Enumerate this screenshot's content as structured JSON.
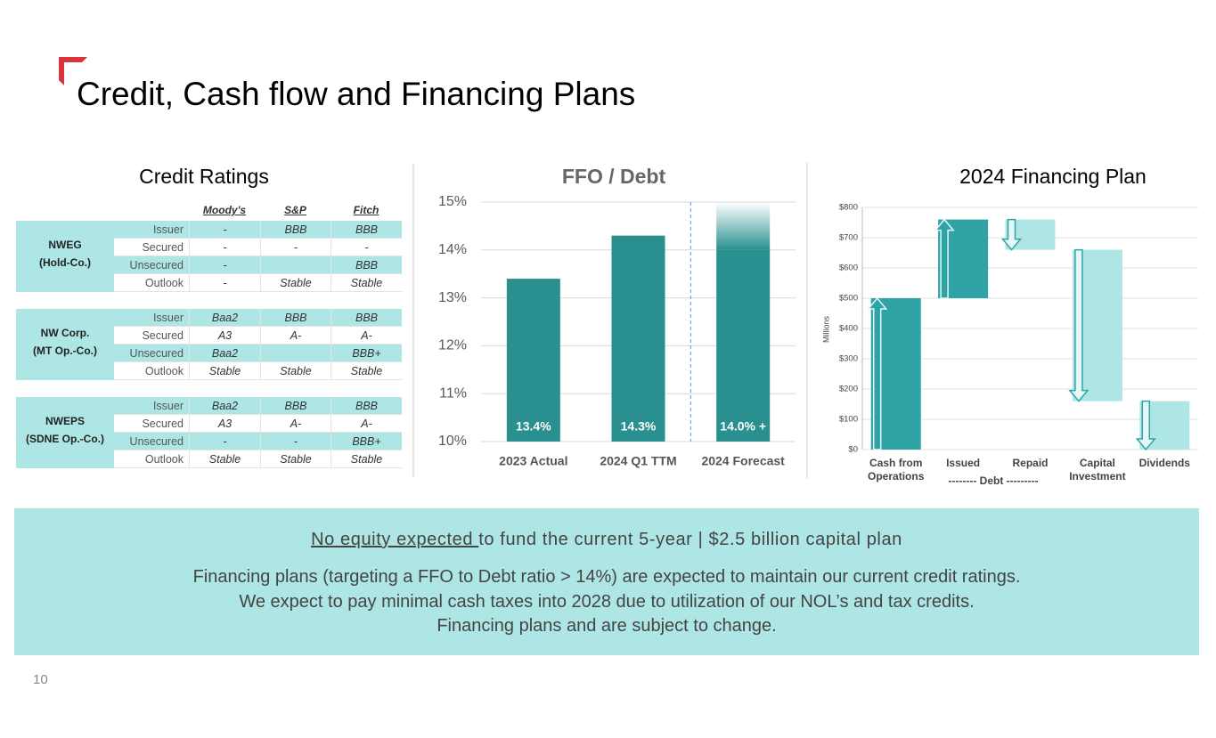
{
  "title": "Credit, Cash flow and Financing Plans",
  "credit_ratings": {
    "title": "Credit Ratings",
    "columns": [
      "Moody's",
      "S&P",
      "Fitch"
    ],
    "groups": [
      {
        "name": [
          "NWEG",
          "(Hold-Co.)"
        ],
        "rows": [
          [
            "Issuer",
            "-",
            "BBB",
            "BBB"
          ],
          [
            "Secured",
            "-",
            "-",
            "-"
          ],
          [
            "Unsecured",
            "-",
            null,
            "BBB"
          ],
          [
            "Outlook",
            "-",
            "Stable",
            "Stable"
          ]
        ]
      },
      {
        "name": [
          "NW Corp.",
          "(MT Op.-Co.)"
        ],
        "rows": [
          [
            "Issuer",
            "Baa2",
            "BBB",
            "BBB"
          ],
          [
            "Secured",
            "A3",
            "A-",
            "A-"
          ],
          [
            "Unsecured",
            "Baa2",
            null,
            "BBB+"
          ],
          [
            "Outlook",
            "Stable",
            "Stable",
            "Stable"
          ]
        ]
      },
      {
        "name": [
          "NWEPS",
          "(SDNE Op.-Co.)"
        ],
        "rows": [
          [
            "Issuer",
            "Baa2",
            "BBB",
            "BBB"
          ],
          [
            "Secured",
            "A3",
            "A-",
            "A-"
          ],
          [
            "Unsecured",
            "-",
            "-",
            "BBB+"
          ],
          [
            "Outlook",
            "Stable",
            "Stable",
            "Stable"
          ]
        ]
      }
    ]
  },
  "chart_data": [
    {
      "type": "bar",
      "title": "FFO / Debt",
      "categories": [
        "2023 Actual",
        "2024 Q1 TTM",
        "2024 Forecast"
      ],
      "values": [
        13.4,
        14.3,
        14.0
      ],
      "value_labels": [
        "13.4%",
        "14.3%",
        "14.0% +"
      ],
      "color": "#2a8f8f",
      "ylim": [
        10,
        15
      ],
      "yticks": [
        {
          "value": 10,
          "label": "10%"
        },
        {
          "value": 11,
          "label": "11%"
        },
        {
          "value": 12,
          "label": "12%"
        },
        {
          "value": 13,
          "label": "13%"
        },
        {
          "value": 14,
          "label": "14%"
        },
        {
          "value": 15,
          "label": "15%"
        }
      ],
      "grid": true
    },
    {
      "type": "waterfall",
      "title": "2024 Financing Plan",
      "y_label": "Millions",
      "categories": [
        "Cash from Operations",
        "Issued",
        "Repaid",
        "Capital Investment",
        "Dividends"
      ],
      "values": [
        500,
        260,
        -100,
        -500,
        -160
      ],
      "increase_color": "#2fa3a6",
      "decrease_color": "#aee6e6",
      "annotation": "-------- Debt ---------",
      "ylim": [
        0,
        800
      ],
      "yticks": [
        {
          "value": 0,
          "label": "$0"
        },
        {
          "value": 100,
          "label": "$100"
        },
        {
          "value": 200,
          "label": "$200"
        },
        {
          "value": 300,
          "label": "$300"
        },
        {
          "value": 400,
          "label": "$400"
        },
        {
          "value": 500,
          "label": "$500"
        },
        {
          "value": 600,
          "label": "$600"
        },
        {
          "value": 700,
          "label": "$700"
        },
        {
          "value": 800,
          "label": "$800"
        }
      ],
      "grid": true
    }
  ],
  "summary": {
    "headline_underlined": "No equity expected ",
    "headline_rest": "to fund the current 5-year | $2.5 billion capital plan",
    "lines": [
      "Financing plans (targeting a FFO to Debt ratio > 14%) are expected to maintain our current credit ratings.",
      "We expect to pay minimal cash taxes into 2028 due to utilization of our NOL’s and tax credits.",
      "Financing plans and are subject to change."
    ]
  },
  "page_number": "10"
}
